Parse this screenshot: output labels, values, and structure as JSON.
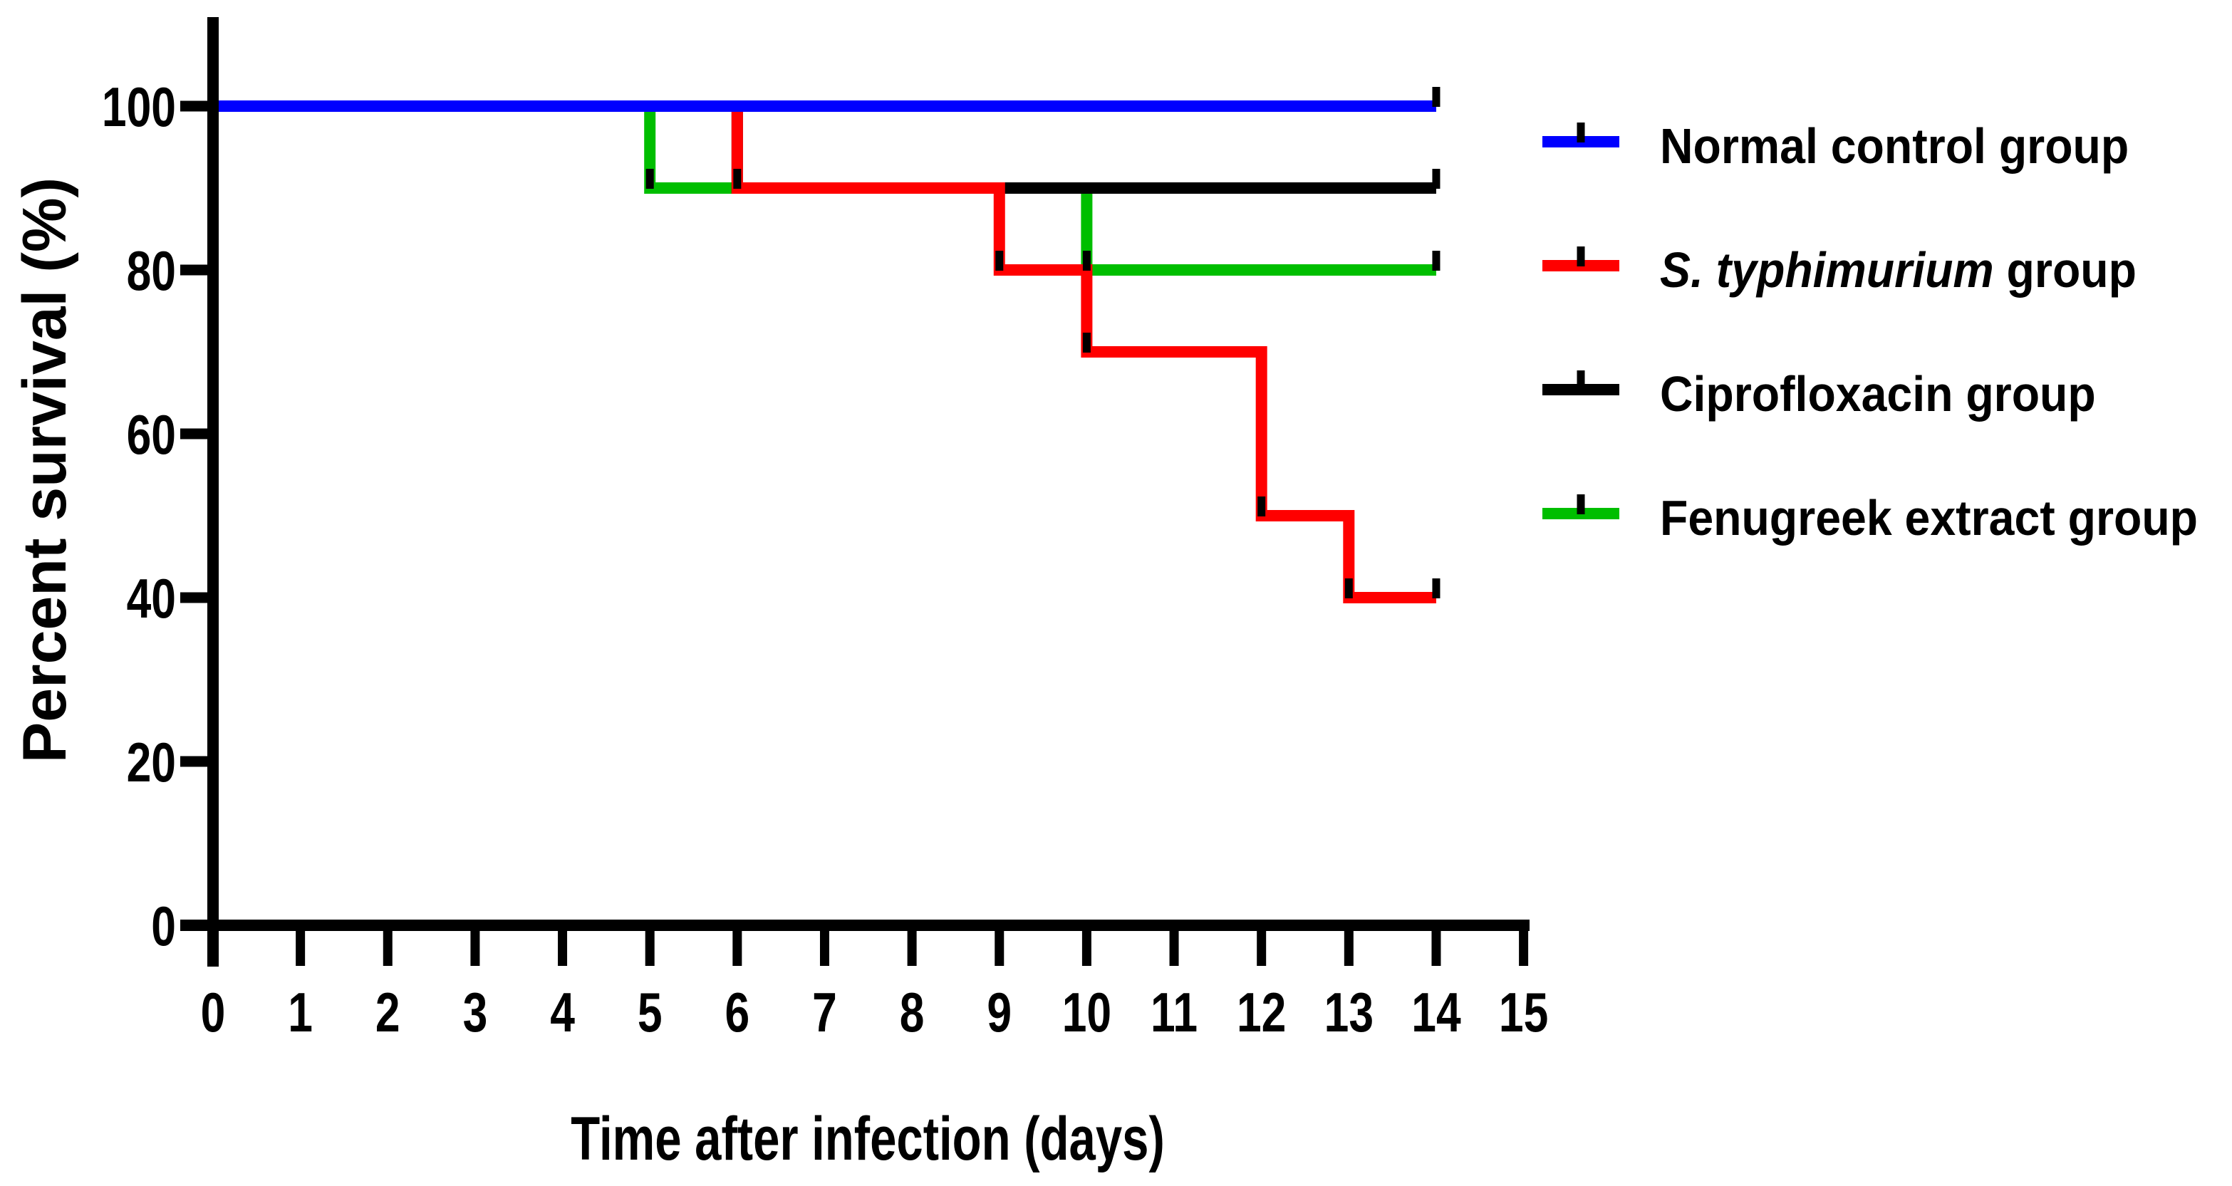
{
  "figure": {
    "background": "#ffffff",
    "kind": "kaplan-meier survival plot"
  },
  "chart_data": {
    "type": "line",
    "subtype": "step-survival",
    "title": "",
    "xlabel": "Time after infection (days)",
    "ylabel": "Percent survival (%)",
    "xlim": [
      0,
      15
    ],
    "ylim": [
      0,
      100
    ],
    "x_ticks": [
      0,
      1,
      2,
      3,
      4,
      5,
      6,
      7,
      8,
      9,
      10,
      11,
      12,
      13,
      14,
      15
    ],
    "y_ticks": [
      0,
      20,
      40,
      60,
      80,
      100
    ],
    "grid": false,
    "axis_color": "#000000",
    "tick_mark_color": "#000000",
    "series": [
      {
        "name": "Normal control group",
        "color": "#0000ff",
        "points": [
          [
            0,
            100
          ],
          [
            14,
            100
          ]
        ]
      },
      {
        "name": "S. typhimurium group",
        "color": "#ff0000",
        "points": [
          [
            0,
            100
          ],
          [
            6,
            100
          ],
          [
            6,
            90
          ],
          [
            9,
            90
          ],
          [
            9,
            80
          ],
          [
            10,
            80
          ],
          [
            10,
            70
          ],
          [
            12,
            70
          ],
          [
            12,
            50
          ],
          [
            13,
            50
          ],
          [
            13,
            40
          ],
          [
            14,
            40
          ]
        ]
      },
      {
        "name": "Ciprofloxacin group",
        "color": "#000000",
        "points": [
          [
            0,
            100
          ],
          [
            6,
            100
          ],
          [
            6,
            90
          ],
          [
            14,
            90
          ]
        ]
      },
      {
        "name": "Fenugreek extract group",
        "color": "#00be00",
        "points": [
          [
            0,
            100
          ],
          [
            5,
            100
          ],
          [
            5,
            90
          ],
          [
            10,
            90
          ],
          [
            10,
            80
          ],
          [
            14,
            80
          ]
        ]
      }
    ],
    "draw_order": [
      "Fenugreek extract group",
      "Ciprofloxacin group",
      "S. typhimurium group",
      "Normal control group"
    ],
    "step_tick_marks": [
      [
        5,
        90
      ],
      [
        6,
        90
      ],
      [
        9,
        80
      ],
      [
        10,
        80
      ],
      [
        10,
        70
      ],
      [
        12,
        50
      ],
      [
        13,
        40
      ],
      [
        14,
        100
      ],
      [
        14,
        90
      ],
      [
        14,
        80
      ],
      [
        14,
        40
      ]
    ],
    "legend_position": "right",
    "legend": [
      {
        "label_italic": "",
        "label": "Normal control group",
        "color": "#0000ff"
      },
      {
        "label_italic": "S. typhimurium",
        "label": " group",
        "color": "#ff0000"
      },
      {
        "label_italic": "",
        "label": "Ciprofloxacin group",
        "color": "#000000"
      },
      {
        "label_italic": "",
        "label": "Fenugreek extract group",
        "color": "#00be00"
      }
    ]
  }
}
